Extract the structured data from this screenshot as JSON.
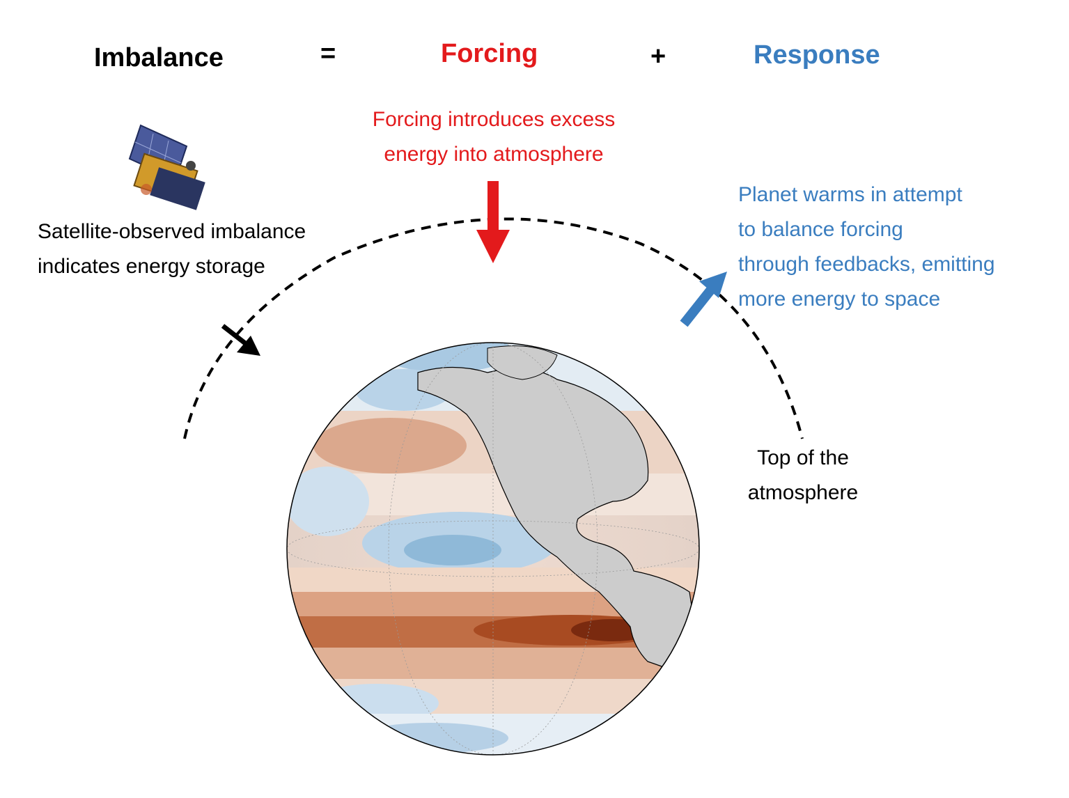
{
  "equation": {
    "imbalance": "Imbalance",
    "equals": "=",
    "forcing": "Forcing",
    "plus": "+",
    "response": "Response"
  },
  "annotations": {
    "forcing_text": [
      "Forcing introduces excess",
      "energy into atmosphere"
    ],
    "satellite_text": [
      "Satellite-observed imbalance",
      "indicates energy storage"
    ],
    "response_text": [
      "Planet warms in attempt",
      "to balance forcing",
      "through feedbacks, emitting",
      "more energy to space"
    ],
    "toa_text": [
      "Top of the",
      "atmosphere"
    ]
  },
  "colors": {
    "forcing": "#e31a1c",
    "response": "#3a7dbf",
    "neutral": "#000000",
    "land": "#cccccc",
    "warm_anomaly": "#b2541f",
    "cool_anomaly": "#8fb9d8"
  },
  "icons": {
    "satellite": "satellite-icon",
    "forcing_arrow": "down-arrow-icon",
    "response_arrow": "up-right-arrow-icon",
    "storage_arrow": "down-right-arrow-icon"
  }
}
